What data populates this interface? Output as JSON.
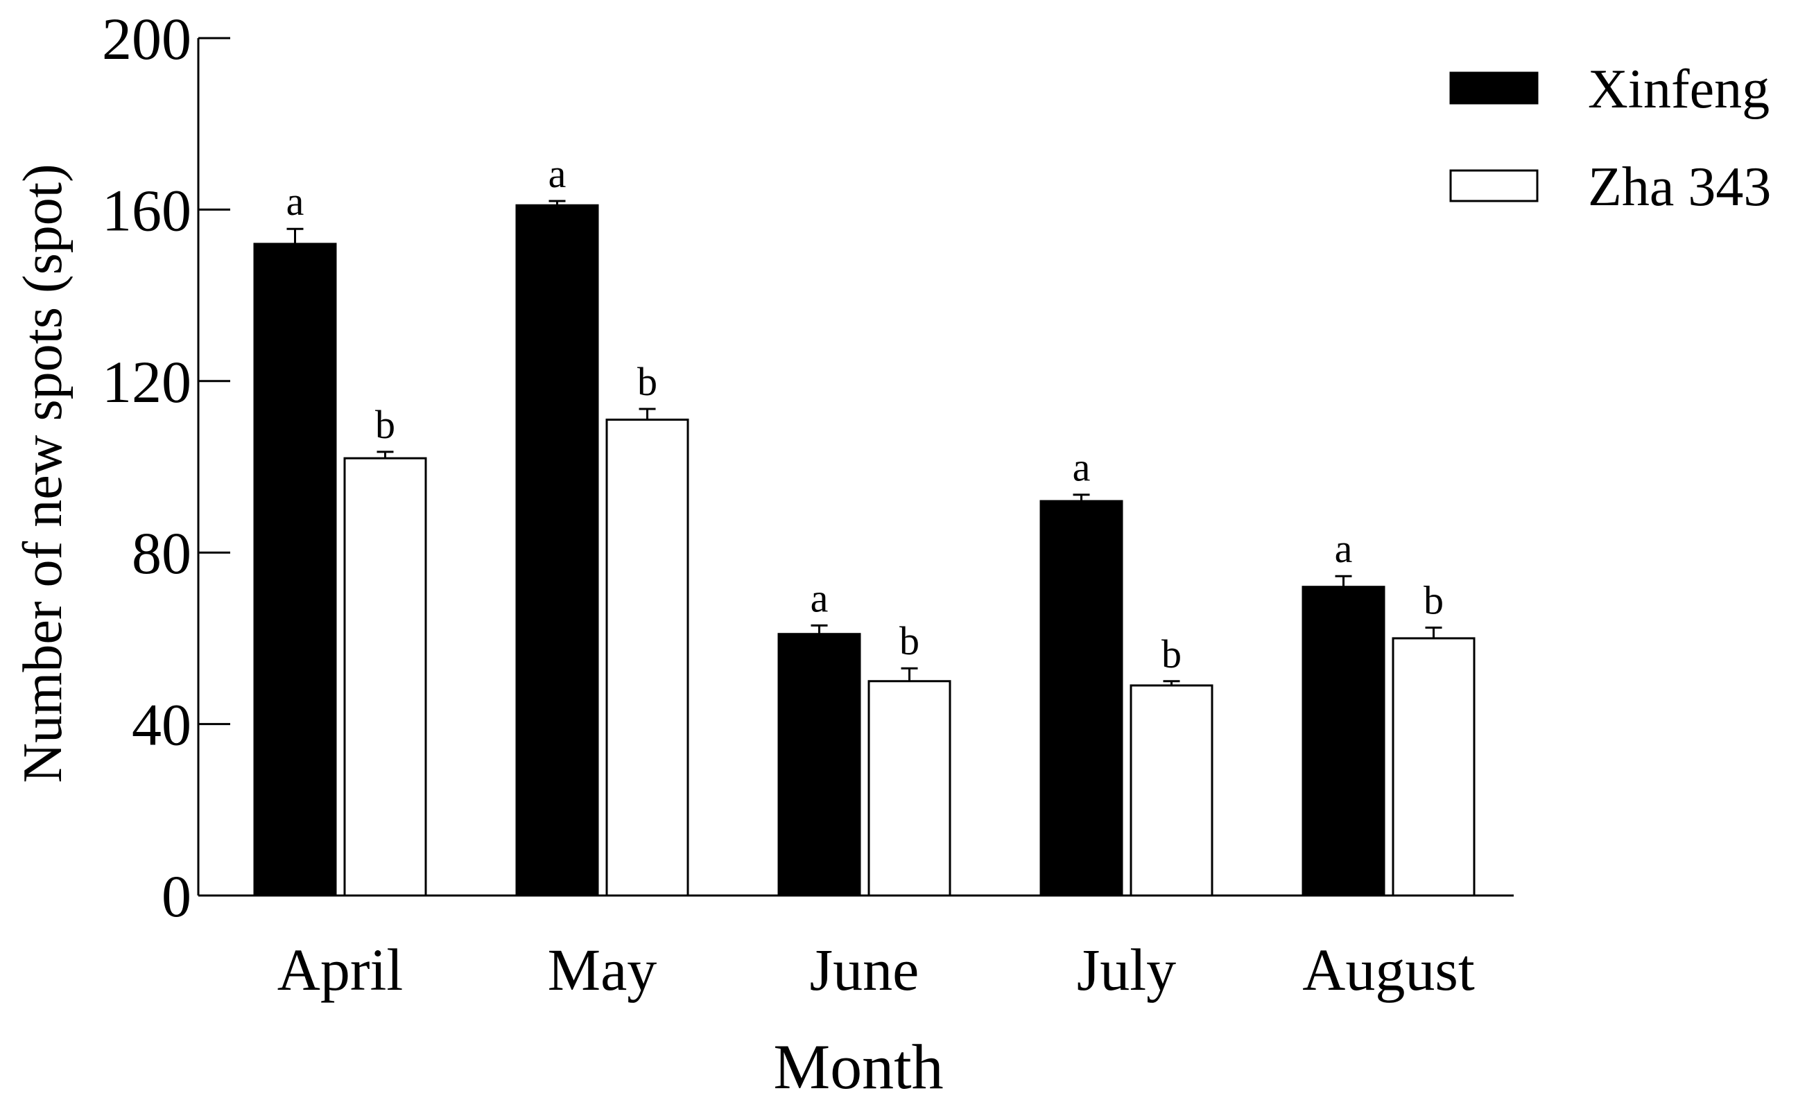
{
  "chart_data": {
    "type": "bar",
    "xlabel": "Month",
    "ylabel": "Number of new spots (spot)",
    "ylim": [
      0,
      200
    ],
    "yticks": [
      "0",
      "40",
      "80",
      "120",
      "160",
      "200"
    ],
    "categories": [
      "April",
      "May",
      "June",
      "July",
      "August"
    ],
    "series": [
      {
        "name": "Xinfeng",
        "color": "#000000",
        "values": [
          152,
          161,
          61,
          92,
          72
        ],
        "errors": [
          3.5,
          1,
          2,
          1.5,
          2.5
        ],
        "letters": [
          "a",
          "a",
          "a",
          "a",
          "a"
        ]
      },
      {
        "name": "Zha 343",
        "color": "#ffffff",
        "values": [
          102,
          111,
          50,
          49,
          60
        ],
        "errors": [
          1.5,
          2.5,
          3,
          1,
          2.5
        ],
        "letters": [
          "b",
          "b",
          "b",
          "b",
          "b"
        ]
      }
    ],
    "legend": "top-right",
    "grid": false
  }
}
